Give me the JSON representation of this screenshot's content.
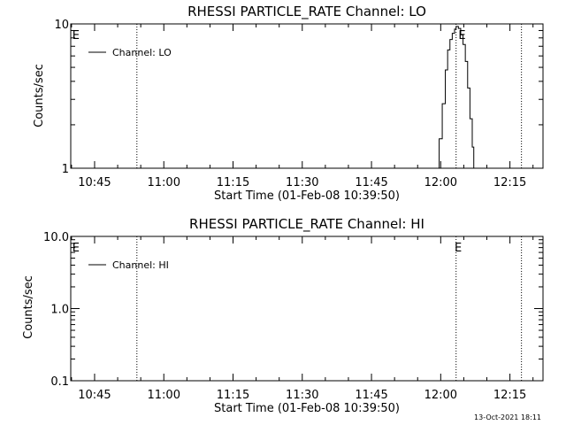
{
  "footer": {
    "timestamp": "13-Oct-2021 18:11"
  },
  "chart_data": [
    {
      "type": "line",
      "title": "RHESSI PARTICLE_RATE Channel: LO",
      "xlabel": "Start Time (01-Feb-08 10:39:50)",
      "ylabel": "Counts/sec",
      "y_scale": "log",
      "xlim": [
        "10:39:50",
        "12:22:10"
      ],
      "ylim": [
        1,
        10
      ],
      "x_ticks": [
        "10:45",
        "11:00",
        "11:15",
        "11:30",
        "11:45",
        "12:00",
        "12:15"
      ],
      "y_ticks": [
        {
          "value": 1,
          "label": "1"
        },
        {
          "value": 10,
          "label": "10"
        }
      ],
      "legend": {
        "placement": "top-left",
        "entries": [
          "Channel: LO"
        ]
      },
      "markers": [
        {
          "time": "10:54:10",
          "label": ""
        },
        {
          "time": "12:03:20",
          "label": ""
        },
        {
          "time": "12:17:30",
          "label": ""
        }
      ],
      "annotations": [
        {
          "text": "E",
          "time": "10:40:10"
        },
        {
          "text": "E",
          "time": "12:03:50"
        }
      ],
      "series": [
        {
          "name": "Channel: LO",
          "x": [
            "11:59:00",
            "11:59:40",
            "12:00:20",
            "12:01:00",
            "12:01:30",
            "12:02:00",
            "12:02:30",
            "12:03:00",
            "12:03:20",
            "12:03:50",
            "12:04:20",
            "12:04:50",
            "12:05:20",
            "12:05:50",
            "12:06:20",
            "12:06:50",
            "12:07:10"
          ],
          "y": [
            1.0,
            1.6,
            2.8,
            4.8,
            6.6,
            7.8,
            8.6,
            9.2,
            9.6,
            9.3,
            8.4,
            7.2,
            5.5,
            3.6,
            2.2,
            1.4,
            1.0
          ]
        }
      ]
    },
    {
      "type": "line",
      "title": "RHESSI PARTICLE_RATE Channel: HI",
      "xlabel": "Start Time (01-Feb-08 10:39:50)",
      "ylabel": "Counts/sec",
      "y_scale": "log",
      "xlim": [
        "10:39:50",
        "12:22:10"
      ],
      "ylim": [
        0.1,
        10
      ],
      "x_ticks": [
        "10:45",
        "11:00",
        "11:15",
        "11:30",
        "11:45",
        "12:00",
        "12:15"
      ],
      "y_ticks": [
        {
          "value": 0.1,
          "label": "0.1"
        },
        {
          "value": 1,
          "label": "1.0"
        },
        {
          "value": 10,
          "label": "10.0"
        }
      ],
      "legend": {
        "placement": "top-left",
        "entries": [
          "Channel: HI"
        ]
      },
      "markers": [
        {
          "time": "10:54:10",
          "label": ""
        },
        {
          "time": "12:03:20",
          "label": ""
        },
        {
          "time": "12:17:30",
          "label": ""
        }
      ],
      "annotations": [
        {
          "text": "E",
          "time": "10:40:10"
        },
        {
          "text": "E",
          "time": "12:03:00"
        }
      ],
      "series": [
        {
          "name": "Channel: HI",
          "x": [],
          "y": []
        }
      ]
    }
  ]
}
